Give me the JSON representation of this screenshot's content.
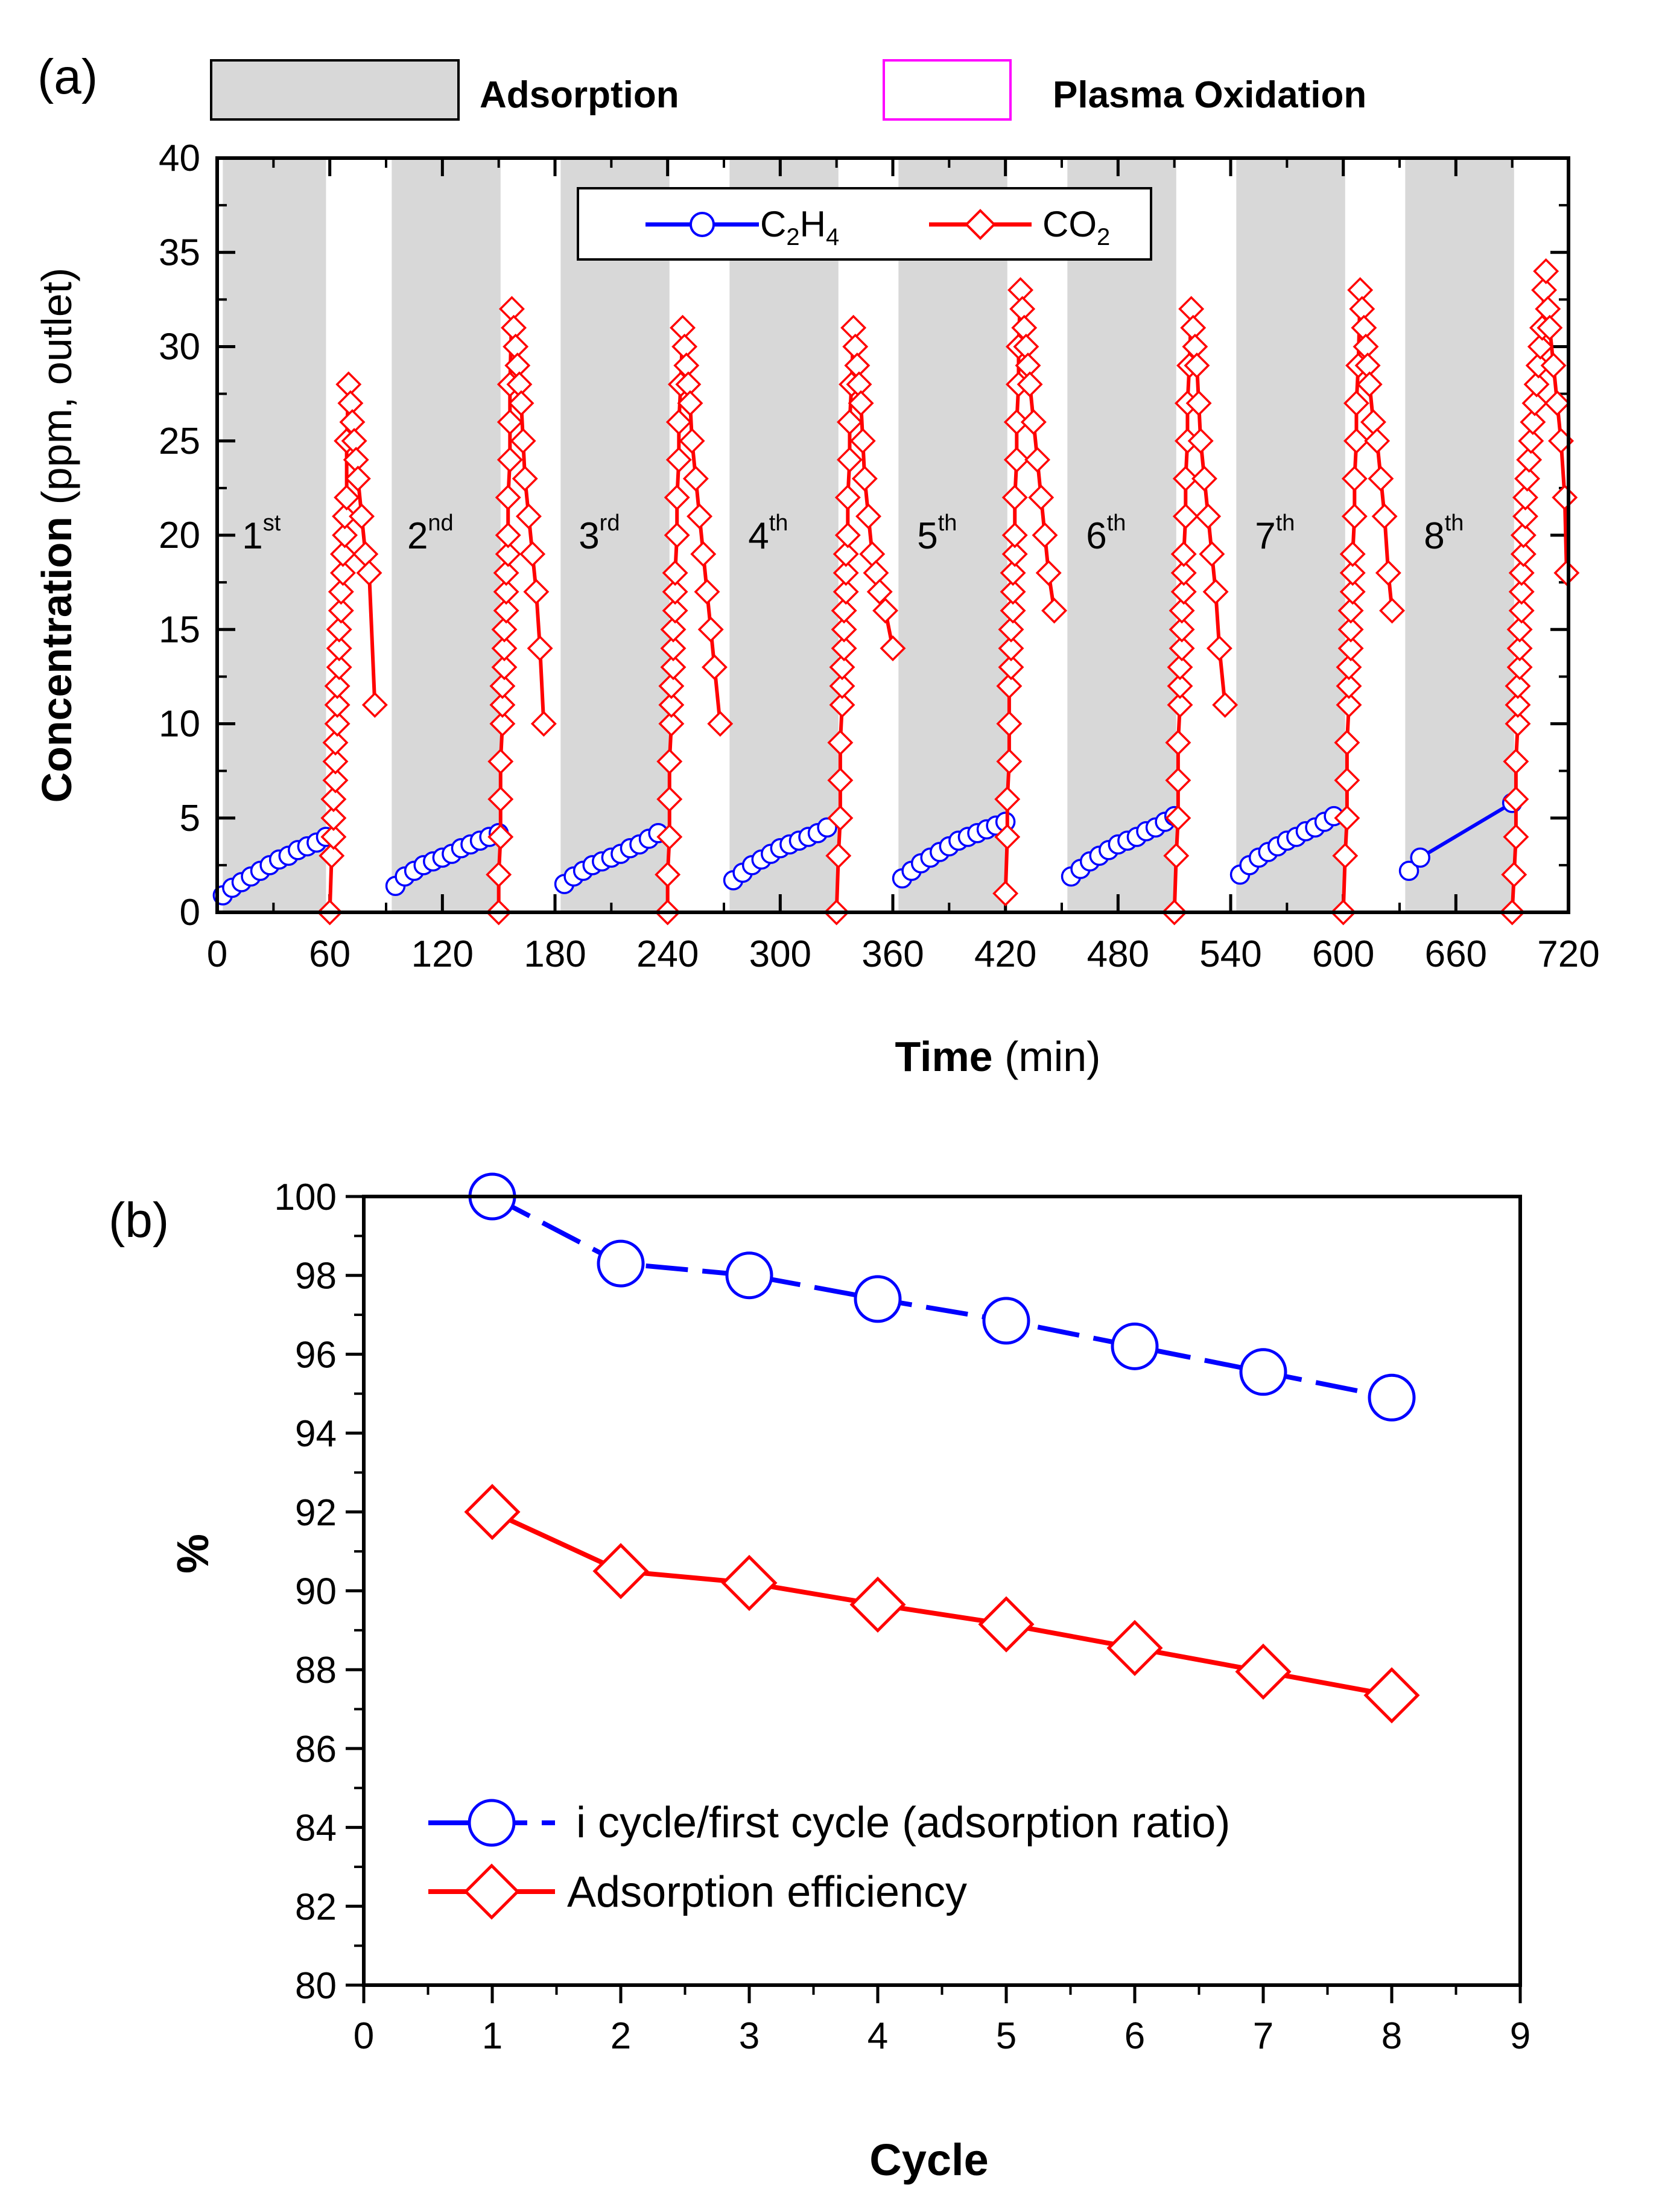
{
  "panel_a": {
    "panel_label": "(a)",
    "banner": {
      "adsorption_label": "Adsorption",
      "plasma_label": "Plasma Oxidation",
      "adsorption_fill": "#d8d8d8",
      "plasma_color": "#ff00ff"
    },
    "cycle_labels": [
      {
        "base": "1",
        "sup": "st",
        "center_min": 30
      },
      {
        "base": "2",
        "sup": "nd",
        "center_min": 120
      },
      {
        "base": "3",
        "sup": "rd",
        "center_min": 210
      },
      {
        "base": "4",
        "sup": "th",
        "center_min": 300
      },
      {
        "base": "5",
        "sup": "th",
        "center_min": 390
      },
      {
        "base": "6",
        "sup": "th",
        "center_min": 480
      },
      {
        "base": "7",
        "sup": "th",
        "center_min": 570
      },
      {
        "base": "8",
        "sup": "th",
        "center_min": 660
      }
    ],
    "legend": {
      "c2h4": {
        "base1": "C",
        "sub1": "2",
        "base2": "H",
        "sub2": "4"
      },
      "co2": {
        "base1": "CO",
        "sub1": "2"
      }
    }
  },
  "panel_b": {
    "panel_label": "(b)",
    "legend": {
      "ratio": "i cycle/first cycle (adsorption ratio)",
      "efficiency": "Adsorption efficiency"
    }
  },
  "chart_data": [
    {
      "type": "line",
      "title": "",
      "xlabel_bold": "Time",
      "xlabel_rest": "(min)",
      "ylabel_bold": "Concentration",
      "ylabel_rest": "(ppm, outlet)",
      "xlim": [
        0,
        720
      ],
      "ylim": [
        0,
        40
      ],
      "xticks": [
        0,
        60,
        120,
        180,
        240,
        300,
        360,
        420,
        480,
        540,
        600,
        660,
        720
      ],
      "yticks": [
        0,
        5,
        10,
        15,
        20,
        25,
        30,
        35,
        40
      ],
      "adsorption_periods": [
        [
          3,
          58
        ],
        [
          93,
          151
        ],
        [
          183,
          241
        ],
        [
          273,
          331
        ],
        [
          363,
          421
        ],
        [
          453,
          511
        ],
        [
          543,
          601
        ],
        [
          633,
          691
        ]
      ],
      "series": [
        {
          "name": "C2H4",
          "color": "#0000ff",
          "marker": "circle",
          "segments": [
            {
              "x": [
                3,
                8,
                13,
                18,
                23,
                28,
                33,
                38,
                43,
                48,
                53,
                58
              ],
              "y": [
                0.9,
                1.3,
                1.6,
                1.9,
                2.2,
                2.5,
                2.8,
                3.0,
                3.3,
                3.5,
                3.7,
                4.0
              ]
            },
            {
              "x": [
                95,
                100,
                105,
                110,
                115,
                120,
                125,
                130,
                135,
                140,
                145,
                150
              ],
              "y": [
                1.4,
                1.9,
                2.2,
                2.5,
                2.7,
                2.9,
                3.1,
                3.4,
                3.6,
                3.8,
                4.0,
                4.2
              ]
            },
            {
              "x": [
                185,
                190,
                195,
                200,
                205,
                210,
                215,
                220,
                225,
                230,
                235
              ],
              "y": [
                1.5,
                1.9,
                2.2,
                2.5,
                2.7,
                2.9,
                3.1,
                3.4,
                3.6,
                3.9,
                4.2
              ]
            },
            {
              "x": [
                275,
                280,
                285,
                290,
                295,
                300,
                305,
                310,
                315,
                320,
                325
              ],
              "y": [
                1.7,
                2.1,
                2.5,
                2.8,
                3.1,
                3.4,
                3.6,
                3.8,
                4.0,
                4.2,
                4.5
              ]
            },
            {
              "x": [
                365,
                370,
                375,
                380,
                385,
                390,
                395,
                400,
                405,
                410,
                415,
                420
              ],
              "y": [
                1.8,
                2.2,
                2.6,
                2.9,
                3.2,
                3.5,
                3.8,
                4.0,
                4.2,
                4.4,
                4.6,
                4.8
              ]
            },
            {
              "x": [
                455,
                460,
                465,
                470,
                475,
                480,
                485,
                490,
                495,
                500,
                505,
                510
              ],
              "y": [
                1.9,
                2.3,
                2.7,
                3.0,
                3.3,
                3.6,
                3.8,
                4.0,
                4.3,
                4.5,
                4.8,
                5.1
              ]
            },
            {
              "x": [
                545,
                550,
                555,
                560,
                565,
                570,
                575,
                580,
                585,
                590,
                595
              ],
              "y": [
                2.0,
                2.5,
                2.9,
                3.2,
                3.5,
                3.8,
                4.0,
                4.3,
                4.5,
                4.8,
                5.1
              ]
            },
            {
              "x": [
                635,
                641,
                690
              ],
              "y": [
                2.2,
                2.9,
                5.8
              ]
            }
          ]
        },
        {
          "name": "CO2",
          "color": "#ff0000",
          "marker": "diamond",
          "segments": [
            {
              "x": [
                60,
                61,
                62,
                62,
                62,
                63,
                63,
                63,
                64,
                64,
                64,
                65,
                65,
                65,
                66,
                66,
                67,
                67,
                68,
                68,
                69,
                69,
                70,
                71,
                72,
                73,
                74,
                75,
                77,
                79,
                81,
                84
              ],
              "y": [
                0,
                3,
                4,
                5,
                6,
                7,
                8,
                9,
                10,
                11,
                12,
                13,
                14,
                15,
                16,
                17,
                18,
                19,
                20,
                21,
                22,
                25,
                28,
                27,
                26,
                25,
                24,
                23,
                21,
                19,
                18,
                11
              ]
            },
            {
              "x": [
                150,
                150,
                151,
                151,
                151,
                152,
                152,
                152,
                153,
                153,
                153,
                154,
                154,
                154,
                155,
                155,
                155,
                156,
                156,
                156,
                157,
                158,
                159,
                160,
                161,
                162,
                163,
                164,
                166,
                168,
                170,
                172,
                174
              ],
              "y": [
                0,
                2,
                4,
                6,
                8,
                10,
                11,
                12,
                13,
                14,
                15,
                16,
                17,
                18,
                19,
                20,
                22,
                24,
                26,
                28,
                32,
                31,
                30,
                29,
                28,
                27,
                25,
                23,
                21,
                19,
                17,
                14,
                10
              ]
            },
            {
              "x": [
                240,
                240,
                241,
                241,
                241,
                242,
                242,
                242,
                243,
                243,
                243,
                244,
                244,
                244,
                245,
                245,
                246,
                246,
                247,
                248,
                249,
                250,
                251,
                252,
                253,
                255,
                257,
                259,
                261,
                263,
                265,
                268
              ],
              "y": [
                0,
                2,
                4,
                6,
                8,
                10,
                11,
                12,
                13,
                14,
                15,
                16,
                17,
                18,
                20,
                22,
                24,
                26,
                28,
                31,
                30,
                29,
                28,
                27,
                25,
                23,
                21,
                19,
                17,
                15,
                13,
                10
              ]
            },
            {
              "x": [
                330,
                331,
                332,
                332,
                332,
                333,
                333,
                333,
                334,
                334,
                334,
                335,
                335,
                335,
                336,
                336,
                337,
                337,
                338,
                339,
                340,
                341,
                342,
                343,
                344,
                345,
                347,
                349,
                351,
                353,
                356,
                360
              ],
              "y": [
                0,
                3,
                5,
                7,
                9,
                11,
                12,
                13,
                14,
                15,
                16,
                17,
                18,
                19,
                20,
                22,
                24,
                26,
                28,
                31,
                30,
                29,
                28,
                27,
                25,
                23,
                21,
                19,
                18,
                17,
                16,
                14
              ]
            },
            {
              "x": [
                420,
                421,
                421,
                422,
                422,
                422,
                423,
                423,
                423,
                424,
                424,
                424,
                425,
                425,
                425,
                426,
                426,
                427,
                427,
                428,
                429,
                430,
                431,
                432,
                433,
                435,
                437,
                439,
                441,
                443,
                446
              ],
              "y": [
                1,
                4,
                6,
                8,
                10,
                12,
                13,
                14,
                15,
                16,
                17,
                18,
                19,
                20,
                22,
                24,
                26,
                28,
                30,
                33,
                32,
                31,
                30,
                29,
                28,
                26,
                24,
                22,
                20,
                18,
                16
              ]
            },
            {
              "x": [
                510,
                511,
                512,
                512,
                512,
                513,
                513,
                513,
                514,
                514,
                514,
                515,
                515,
                515,
                516,
                516,
                517,
                517,
                518,
                519,
                520,
                521,
                522,
                523,
                524,
                526,
                528,
                530,
                532,
                534,
                537
              ],
              "y": [
                0,
                3,
                5,
                7,
                9,
                11,
                12,
                13,
                14,
                15,
                16,
                17,
                18,
                19,
                21,
                23,
                25,
                27,
                29,
                32,
                31,
                30,
                29,
                27,
                25,
                23,
                21,
                19,
                17,
                14,
                11
              ]
            },
            {
              "x": [
                600,
                601,
                602,
                602,
                602,
                603,
                603,
                603,
                604,
                604,
                604,
                605,
                605,
                605,
                606,
                606,
                607,
                607,
                608,
                609,
                610,
                611,
                612,
                613,
                614,
                616,
                618,
                620,
                622,
                624,
                626
              ],
              "y": [
                0,
                3,
                5,
                7,
                9,
                11,
                12,
                13,
                14,
                15,
                16,
                17,
                18,
                19,
                21,
                23,
                25,
                27,
                29,
                33,
                32,
                31,
                30,
                29,
                28,
                26,
                25,
                23,
                21,
                18,
                16
              ]
            },
            {
              "x": [
                690,
                691,
                692,
                692,
                692,
                693,
                693,
                693,
                694,
                694,
                694,
                695,
                695,
                695,
                696,
                696,
                697,
                697,
                698,
                699,
                700,
                701,
                702,
                703,
                704,
                705,
                706,
                707,
                708,
                709,
                710,
                712,
                714,
                716,
                718,
                719
              ],
              "y": [
                0,
                2,
                4,
                6,
                8,
                10,
                11,
                12,
                13,
                14,
                15,
                16,
                17,
                18,
                19,
                20,
                21,
                22,
                23,
                24,
                25,
                26,
                27,
                28,
                29,
                30,
                31,
                33,
                34,
                32,
                31,
                29,
                27,
                25,
                22,
                18
              ]
            }
          ]
        }
      ]
    },
    {
      "type": "line",
      "title": "",
      "xlabel": "Cycle",
      "ylabel": "%",
      "xlim": [
        0,
        9
      ],
      "ylim": [
        80,
        100
      ],
      "xticks": [
        0,
        1,
        2,
        3,
        4,
        5,
        6,
        7,
        8,
        9
      ],
      "yticks": [
        80,
        82,
        84,
        86,
        88,
        90,
        92,
        94,
        96,
        98,
        100
      ],
      "x": [
        1,
        2,
        3,
        4,
        5,
        6,
        7,
        8
      ],
      "series": [
        {
          "name": "i cycle/first cycle (adsorption ratio)",
          "color": "#0000ff",
          "marker": "circle",
          "values": [
            100,
            98.3,
            98.0,
            97.4,
            96.85,
            96.2,
            95.55,
            94.9
          ]
        },
        {
          "name": "Adsorption efficiency",
          "color": "#ff0000",
          "marker": "diamond",
          "values": [
            92.0,
            90.5,
            90.2,
            89.65,
            89.15,
            88.55,
            87.95,
            87.35
          ]
        }
      ]
    }
  ]
}
